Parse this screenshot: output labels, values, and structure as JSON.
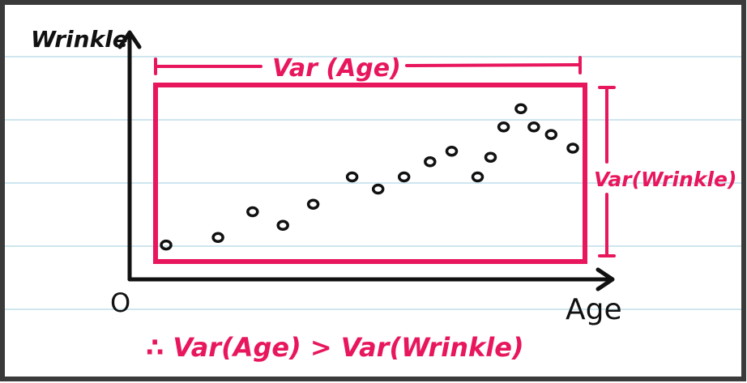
{
  "labels": {
    "y_axis": "Wrinkle",
    "x_axis": "Age",
    "origin": "O",
    "var_age": "Var (Age)",
    "var_wrinkle": "Var(Wrinkle)",
    "conclusion": "∴ Var(Age) > Var(Wrinkle)"
  },
  "colors": {
    "ink": "#111111",
    "accent": "#e8175d",
    "notebook_line": "#cfe6ef",
    "border": "#3a3a3a"
  },
  "points": [
    {
      "age": 0,
      "wrinkle": 0.5
    },
    {
      "age": 1.2,
      "wrinkle": 1.0
    },
    {
      "age": 2.0,
      "wrinkle": 2.7
    },
    {
      "age": 2.7,
      "wrinkle": 1.8
    },
    {
      "age": 3.4,
      "wrinkle": 3.2
    },
    {
      "age": 4.3,
      "wrinkle": 5.0
    },
    {
      "age": 4.9,
      "wrinkle": 4.2
    },
    {
      "age": 5.5,
      "wrinkle": 5.0
    },
    {
      "age": 6.1,
      "wrinkle": 6.0
    },
    {
      "age": 6.6,
      "wrinkle": 6.7
    },
    {
      "age": 7.2,
      "wrinkle": 5.0
    },
    {
      "age": 7.5,
      "wrinkle": 6.3
    },
    {
      "age": 7.8,
      "wrinkle": 8.3
    },
    {
      "age": 8.2,
      "wrinkle": 9.5
    },
    {
      "age": 8.5,
      "wrinkle": 8.3
    },
    {
      "age": 8.9,
      "wrinkle": 7.8
    },
    {
      "age": 9.4,
      "wrinkle": 6.9
    }
  ],
  "extent": {
    "age": [
      0,
      9.4
    ],
    "wrinkle": [
      0,
      10
    ]
  }
}
